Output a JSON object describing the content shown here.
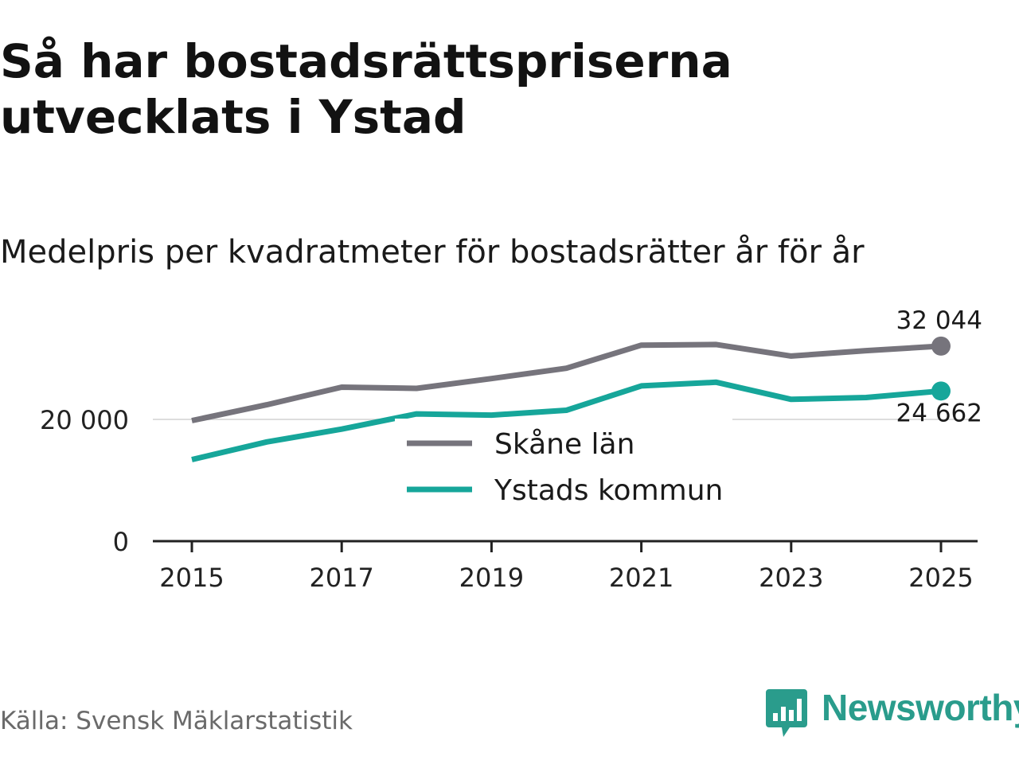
{
  "title": "Så har bostadsrättspriserna utvecklats i Ystad",
  "subtitle": "Medelpris per kvadratmeter för bostadsrätter år för år",
  "source": "Källa: Svensk Mäklarstatistik",
  "brand": "Newsworthy",
  "colors": {
    "skane": "#76747c",
    "ystad": "#16a69a",
    "axis": "#222222",
    "grid": "#dddddd",
    "brand": "#2a9c8c"
  },
  "chart_data": {
    "type": "line",
    "title": "Medelpris per kvadratmeter för bostadsrätter år för år",
    "x": [
      2015,
      2016,
      2017,
      2018,
      2019,
      2020,
      2021,
      2022,
      2023,
      2024,
      2025
    ],
    "xticks": [
      "2015",
      "2017",
      "2019",
      "2021",
      "2023",
      "2025"
    ],
    "ylim": [
      0,
      36000
    ],
    "yticks": [
      {
        "value": 0,
        "label": "0"
      },
      {
        "value": 20000,
        "label": "20 000"
      }
    ],
    "series": [
      {
        "name": "Skåne län",
        "values": [
          19800,
          22400,
          25300,
          25100,
          26700,
          28400,
          32200,
          32300,
          30400,
          31300,
          32044
        ],
        "end_label": "32 044"
      },
      {
        "name": "Ystads kommun",
        "values": [
          13400,
          16300,
          18400,
          20900,
          20700,
          21500,
          25500,
          26100,
          23300,
          23600,
          24662
        ],
        "end_label": "24 662"
      }
    ],
    "legend": "center"
  }
}
